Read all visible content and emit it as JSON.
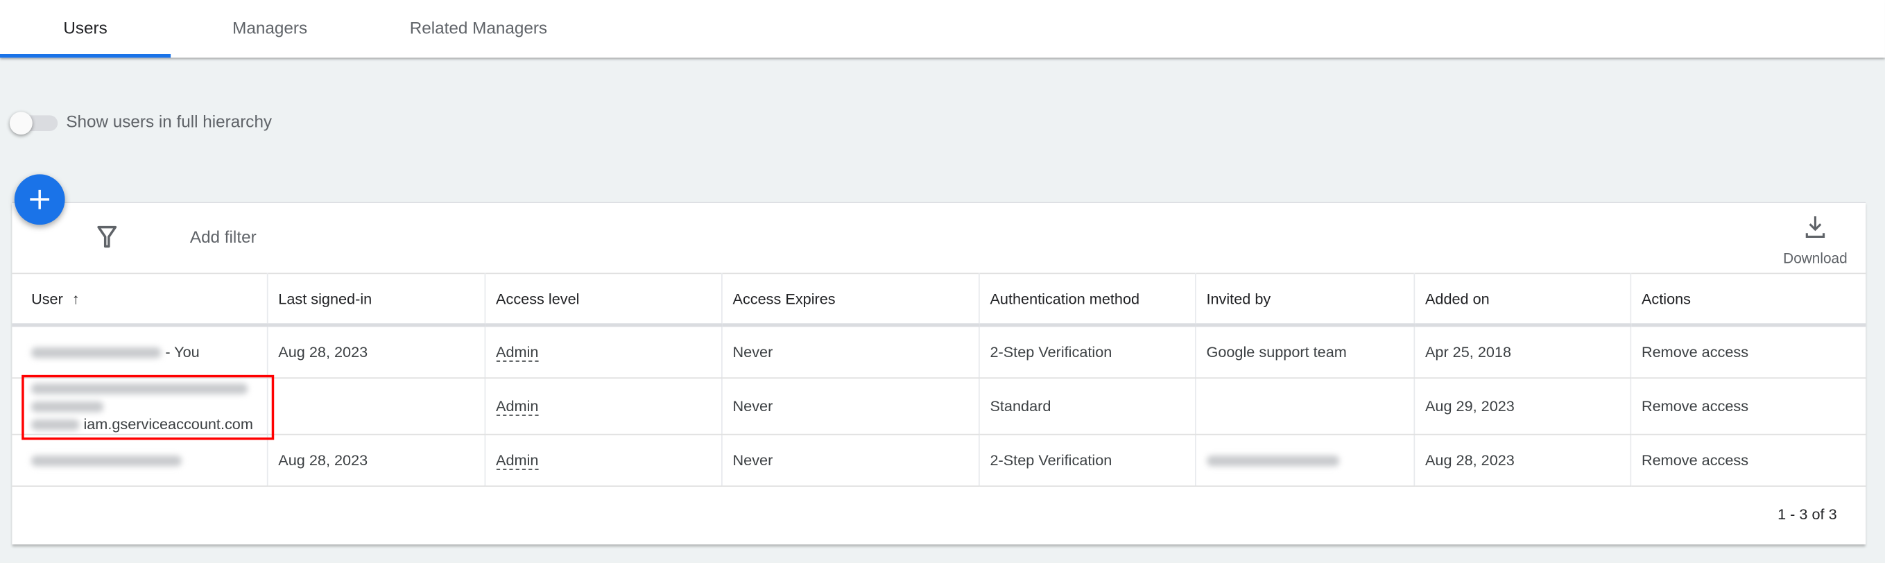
{
  "tabs": [
    {
      "label": "Users",
      "active": true
    },
    {
      "label": "Managers",
      "active": false
    },
    {
      "label": "Related Managers",
      "active": false
    }
  ],
  "accent_color": "#1a73e8",
  "hierarchy_toggle": {
    "label": "Show users in full hierarchy",
    "on": false
  },
  "toolbar": {
    "add_icon": "plus-icon",
    "filter_icon": "filter-icon",
    "filter_placeholder": "Add filter",
    "download_label": "Download",
    "download_icon": "download-icon"
  },
  "table": {
    "columns": [
      "User",
      "Last signed-in",
      "Access level",
      "Access Expires",
      "Authentication method",
      "Invited by",
      "Added on",
      "Actions"
    ],
    "sort": {
      "column": "User",
      "direction": "ascending"
    },
    "rows": [
      {
        "user_suffix": "- You",
        "last_signed_in": "Aug 28, 2023",
        "access_level": "Admin",
        "expires": "Never",
        "auth": "2-Step Verification",
        "invited_by": "Google support team",
        "added_on": "Apr 25, 2018",
        "action": "Remove access"
      },
      {
        "user_suffix": "iam.gserviceaccount.com",
        "last_signed_in": "",
        "access_level": "Admin",
        "expires": "Never",
        "auth": "Standard",
        "invited_by": "",
        "added_on": "Aug 29, 2023",
        "action": "Remove access"
      },
      {
        "user_suffix": "",
        "last_signed_in": "Aug 28, 2023",
        "access_level": "Admin",
        "expires": "Never",
        "auth": "2-Step Verification",
        "invited_by": "",
        "added_on": "Aug 28, 2023",
        "action": "Remove access"
      }
    ]
  },
  "pagination": "1 - 3 of 3"
}
